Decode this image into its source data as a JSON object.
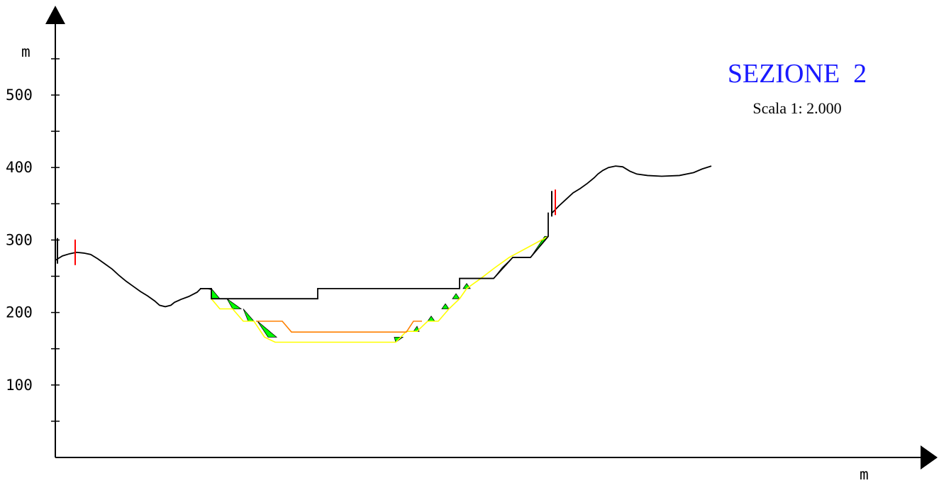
{
  "title": "SEZIONE  2",
  "subtitle": "Scala 1: 2.000",
  "y_unit_label": "m",
  "x_unit_label": "m",
  "colors": {
    "terrain": "#000000",
    "design_profile": "#000000",
    "excavation_fill": "#00ff00",
    "yellow_line": "#ffff00",
    "orange_line": "#ff8000",
    "red_marker": "#ff0000",
    "title": "#1a1aff"
  },
  "chart_data": {
    "type": "cross-section",
    "title": "SEZIONE  2",
    "subtitle": "Scala 1: 2.000",
    "xlabel": "m",
    "ylabel": "m",
    "x_range": [
      0,
      1220
    ],
    "ylim": [
      0,
      560
    ],
    "y_ticks": [
      {
        "value": 100,
        "label": "100"
      },
      {
        "value": 200,
        "label": "200"
      },
      {
        "value": 300,
        "label": "300"
      },
      {
        "value": 400,
        "label": "400"
      },
      {
        "value": 500,
        "label": "500"
      }
    ],
    "y_minor_ticks": [
      50,
      150,
      250,
      350,
      450,
      550
    ],
    "terrain": [
      [
        0,
        272
      ],
      [
        10,
        278
      ],
      [
        20,
        281
      ],
      [
        30,
        283
      ],
      [
        40,
        282
      ],
      [
        50,
        280
      ],
      [
        60,
        274
      ],
      [
        70,
        267
      ],
      [
        80,
        260
      ],
      [
        90,
        251
      ],
      [
        100,
        243
      ],
      [
        110,
        236
      ],
      [
        120,
        229
      ],
      [
        130,
        223
      ],
      [
        140,
        216
      ],
      [
        147,
        210
      ],
      [
        155,
        208
      ],
      [
        163,
        210
      ],
      [
        168,
        214
      ],
      [
        177,
        218
      ],
      [
        188,
        222
      ],
      [
        200,
        228
      ],
      [
        205,
        233
      ],
      [
        215,
        233
      ],
      [
        220,
        232
      ]
    ],
    "terrain_right": [
      [
        700,
        337
      ],
      [
        710,
        347
      ],
      [
        720,
        356
      ],
      [
        730,
        365
      ],
      [
        740,
        371
      ],
      [
        750,
        378
      ],
      [
        760,
        386
      ],
      [
        765,
        391
      ],
      [
        772,
        396
      ],
      [
        780,
        400
      ],
      [
        790,
        402
      ],
      [
        800,
        401
      ],
      [
        810,
        395
      ],
      [
        820,
        391
      ],
      [
        835,
        389
      ],
      [
        855,
        388
      ],
      [
        880,
        389
      ],
      [
        900,
        393
      ],
      [
        912,
        398
      ],
      [
        925,
        402
      ]
    ],
    "design_profile": [
      [
        204,
        233
      ],
      [
        220,
        233
      ],
      [
        220,
        219
      ],
      [
        370,
        219
      ],
      [
        370,
        233
      ],
      [
        570,
        233
      ],
      [
        570,
        247
      ],
      [
        618,
        247
      ],
      [
        645,
        276
      ],
      [
        670,
        276
      ],
      [
        695,
        305
      ],
      [
        695,
        338
      ]
    ],
    "yellow_line": [
      [
        220,
        219
      ],
      [
        232,
        205
      ],
      [
        250,
        205
      ],
      [
        265,
        188
      ],
      [
        280,
        188
      ],
      [
        295,
        166
      ],
      [
        310,
        159
      ],
      [
        480,
        159
      ],
      [
        495,
        174
      ],
      [
        510,
        174
      ],
      [
        525,
        188
      ],
      [
        540,
        188
      ],
      [
        555,
        205
      ],
      [
        570,
        219
      ],
      [
        580,
        233
      ],
      [
        600,
        247
      ],
      [
        620,
        262
      ],
      [
        640,
        276
      ],
      [
        695,
        305
      ]
    ],
    "orange_line": [
      [
        283,
        188
      ],
      [
        320,
        188
      ],
      [
        333,
        173
      ],
      [
        495,
        173
      ],
      [
        505,
        188
      ],
      [
        517,
        188
      ]
    ],
    "fill_wedges": [
      [
        [
          220,
          233
        ],
        [
          220,
          219
        ],
        [
          232,
          219
        ]
      ],
      [
        [
          242,
          219
        ],
        [
          250,
          205
        ],
        [
          262,
          205
        ]
      ],
      [
        [
          265,
          205
        ],
        [
          272,
          188
        ],
        [
          280,
          188
        ]
      ],
      [
        [
          285,
          188
        ],
        [
          300,
          166
        ],
        [
          312,
          166
        ]
      ],
      [
        [
          480,
          159
        ],
        [
          490,
          166
        ],
        [
          478,
          166
        ]
      ],
      [
        [
          505,
          174
        ],
        [
          513,
          174
        ],
        [
          510,
          181
        ]
      ],
      [
        [
          525,
          188
        ],
        [
          535,
          188
        ],
        [
          530,
          195
        ]
      ],
      [
        [
          545,
          205
        ],
        [
          555,
          205
        ],
        [
          550,
          212
        ]
      ],
      [
        [
          560,
          219
        ],
        [
          570,
          219
        ],
        [
          565,
          226
        ]
      ],
      [
        [
          575,
          233
        ],
        [
          585,
          233
        ],
        [
          580,
          240
        ]
      ],
      [
        [
          618,
          247
        ],
        [
          645,
          276
        ],
        [
          630,
          262
        ]
      ],
      [
        [
          670,
          276
        ],
        [
          695,
          305
        ],
        [
          690,
          305
        ]
      ]
    ],
    "markers": [
      {
        "x": 3,
        "y": 285,
        "color": "black"
      },
      {
        "x": 28,
        "y": 283,
        "color": "red"
      },
      {
        "x": 700,
        "y": 350,
        "color": "black"
      },
      {
        "x": 705,
        "y": 352,
        "color": "red"
      }
    ]
  }
}
